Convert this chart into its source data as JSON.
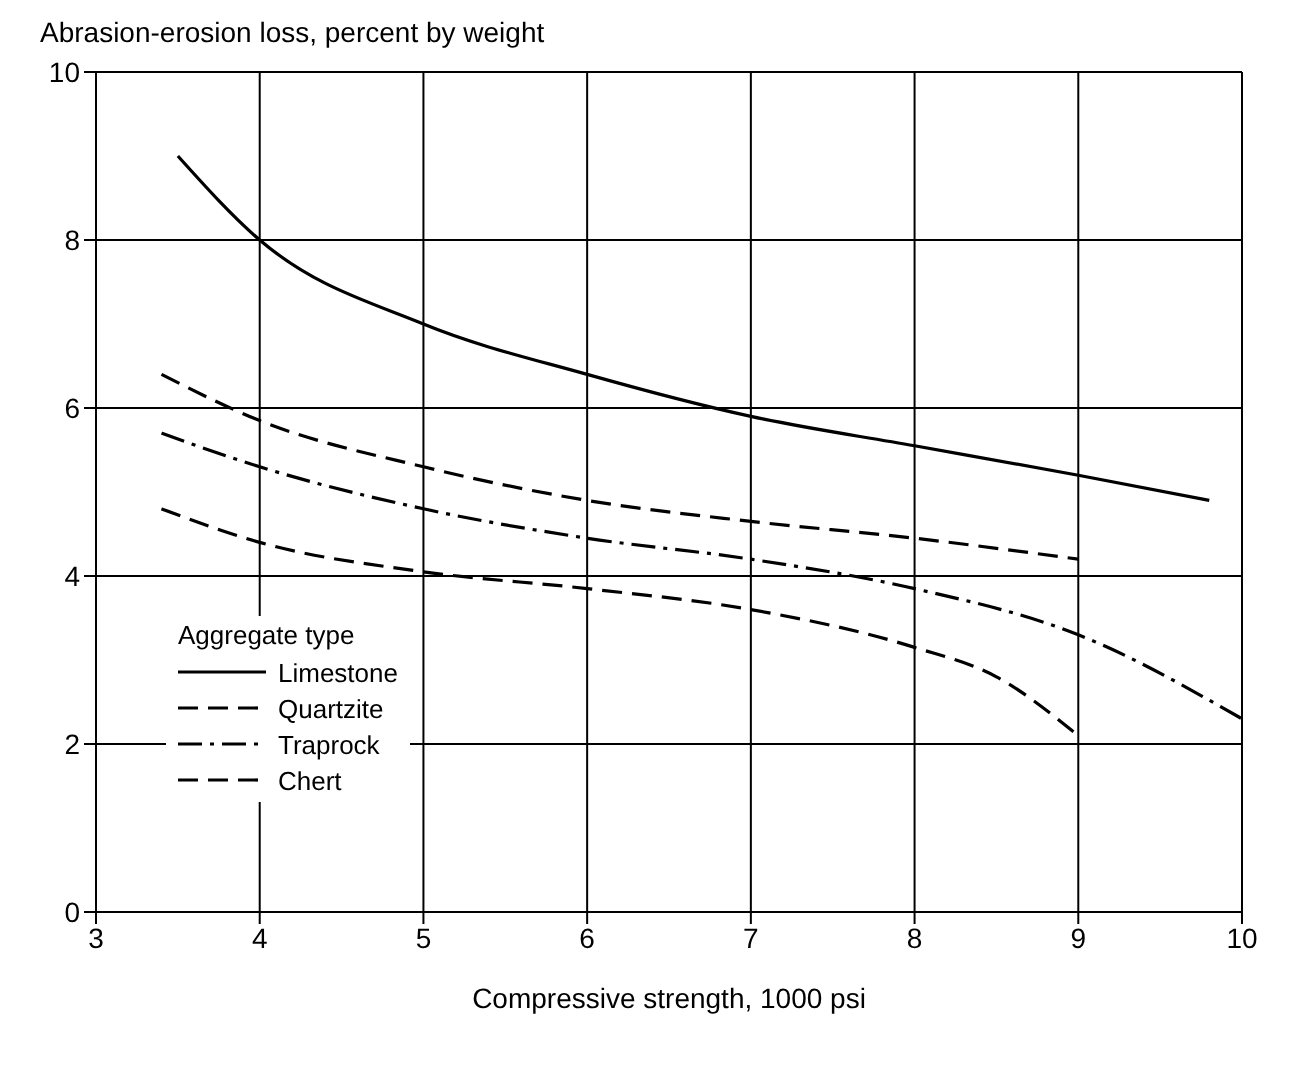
{
  "chart_data": {
    "type": "line",
    "ylabel": "Abrasion-erosion loss, percent by weight",
    "xlabel": "Compressive strength, 1000 psi",
    "legend_title": "Aggregate type",
    "xlim": [
      3,
      10
    ],
    "xticks": [
      3,
      4,
      5,
      6,
      7,
      8,
      9,
      10
    ],
    "ylim": [
      0,
      10
    ],
    "yticks": [
      0,
      2,
      4,
      6,
      8,
      10
    ],
    "grid": true,
    "legend": "bottom left",
    "marker": "none",
    "series": [
      {
        "name": "Limestone",
        "color": "#000000",
        "line_style": "solid",
        "x": [
          3.5,
          4,
          5,
          6,
          7,
          8,
          9,
          9.8
        ],
        "values": [
          9.0,
          8.0,
          7.0,
          6.4,
          5.9,
          5.55,
          5.2,
          4.9
        ]
      },
      {
        "name": "Quartzite",
        "color": "#000000",
        "line_style": "dashed",
        "x": [
          3.4,
          4,
          5,
          6,
          7,
          8,
          9
        ],
        "values": [
          6.4,
          5.85,
          5.3,
          4.9,
          4.65,
          4.45,
          4.2
        ]
      },
      {
        "name": "Traprock",
        "color": "#000000",
        "line_style": "dashdot",
        "x": [
          3.4,
          4,
          5,
          6,
          7,
          8,
          9,
          10
        ],
        "values": [
          5.7,
          5.3,
          4.8,
          4.45,
          4.2,
          3.85,
          3.3,
          2.3
        ]
      },
      {
        "name": "Chert",
        "color": "#000000",
        "line_style": "dashed",
        "x": [
          3.4,
          4,
          5,
          6,
          7,
          8,
          8.5,
          9
        ],
        "values": [
          4.8,
          4.4,
          4.05,
          3.85,
          3.6,
          3.15,
          2.8,
          2.1
        ]
      }
    ]
  }
}
